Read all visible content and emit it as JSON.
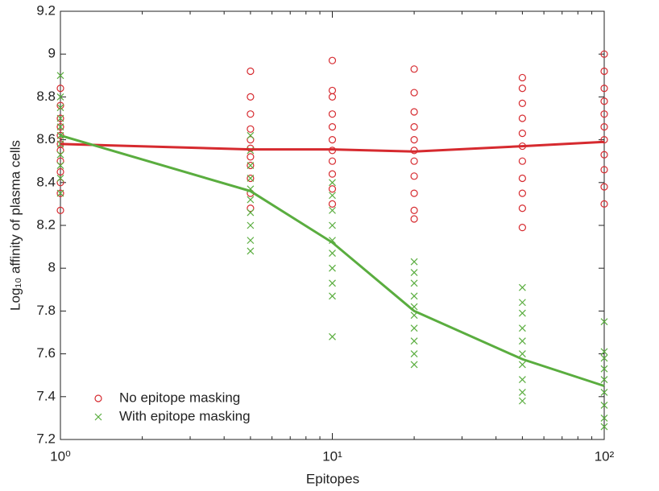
{
  "chart_data": {
    "type": "scatter",
    "xlabel": "Epitopes",
    "ylabel": "Log₁₀ affinity of plasma cells",
    "xscale": "log",
    "xlim": [
      1,
      100
    ],
    "xticks": [
      {
        "value": 1,
        "label": "10⁰"
      },
      {
        "value": 10,
        "label": "10¹"
      },
      {
        "value": 100,
        "label": "10²"
      }
    ],
    "xminorticks": [
      2,
      3,
      4,
      5,
      6,
      7,
      8,
      9,
      20,
      30,
      40,
      50,
      60,
      70,
      80,
      90
    ],
    "ylim": [
      7.2,
      9.2
    ],
    "yticks": [
      7.2,
      7.4,
      7.6,
      7.8,
      8,
      8.2,
      8.4,
      8.6,
      8.8,
      9,
      9.2
    ],
    "legend": "lower left",
    "series": [
      {
        "name": "No epitope masking",
        "color": "#d62a2f",
        "marker": "o",
        "x": [
          1,
          1,
          1,
          1,
          1,
          1,
          1,
          1,
          1,
          1,
          1,
          1,
          5,
          5,
          5,
          5,
          5,
          5,
          5,
          5,
          5,
          5,
          5,
          10,
          10,
          10,
          10,
          10,
          10,
          10,
          10,
          10,
          10,
          10,
          20,
          20,
          20,
          20,
          20,
          20,
          20,
          20,
          20,
          20,
          20,
          50,
          50,
          50,
          50,
          50,
          50,
          50,
          50,
          50,
          50,
          50,
          100,
          100,
          100,
          100,
          100,
          100,
          100,
          100,
          100,
          100,
          100
        ],
        "values": [
          8.27,
          8.35,
          8.4,
          8.45,
          8.5,
          8.55,
          8.58,
          8.62,
          8.66,
          8.7,
          8.76,
          8.84,
          8.28,
          8.35,
          8.42,
          8.48,
          8.52,
          8.56,
          8.6,
          8.65,
          8.72,
          8.8,
          8.92,
          8.3,
          8.37,
          8.44,
          8.5,
          8.55,
          8.6,
          8.66,
          8.72,
          8.8,
          8.83,
          8.97,
          8.23,
          8.27,
          8.35,
          8.43,
          8.5,
          8.55,
          8.6,
          8.66,
          8.73,
          8.82,
          8.93,
          8.19,
          8.28,
          8.35,
          8.42,
          8.5,
          8.57,
          8.63,
          8.7,
          8.77,
          8.84,
          8.89,
          8.3,
          8.38,
          8.46,
          8.53,
          8.6,
          8.66,
          8.72,
          8.78,
          8.84,
          8.92,
          9.0
        ]
      },
      {
        "name": "With epitope masking",
        "color": "#5aad3f",
        "marker": "x",
        "x": [
          1,
          1,
          1,
          1,
          1,
          1,
          1,
          1,
          1,
          1,
          1,
          5,
          5,
          5,
          5,
          5,
          5,
          5,
          5,
          5,
          5,
          10,
          10,
          10,
          10,
          10,
          10,
          10,
          10,
          10,
          10,
          20,
          20,
          20,
          20,
          20,
          20,
          20,
          20,
          20,
          20,
          50,
          50,
          50,
          50,
          50,
          50,
          50,
          50,
          50,
          50,
          100,
          100,
          100,
          100,
          100,
          100,
          100,
          100,
          100
        ],
        "values": [
          8.35,
          8.42,
          8.48,
          8.53,
          8.58,
          8.62,
          8.66,
          8.7,
          8.75,
          8.8,
          8.9,
          8.08,
          8.13,
          8.2,
          8.26,
          8.32,
          8.37,
          8.42,
          8.48,
          8.55,
          8.62,
          7.68,
          7.87,
          7.93,
          8.0,
          8.07,
          8.13,
          8.2,
          8.27,
          8.34,
          8.4,
          7.55,
          7.6,
          7.66,
          7.72,
          7.78,
          7.82,
          7.87,
          7.93,
          7.98,
          8.03,
          7.38,
          7.42,
          7.48,
          7.55,
          7.6,
          7.66,
          7.72,
          7.79,
          7.84,
          7.91,
          7.26,
          7.3,
          7.36,
          7.42,
          7.48,
          7.53,
          7.58,
          7.61,
          7.75
        ]
      }
    ],
    "lines": [
      {
        "color": "#d62a2f",
        "x": [
          1,
          5,
          10,
          20,
          50,
          100
        ],
        "values": [
          8.58,
          8.555,
          8.555,
          8.545,
          8.57,
          8.59
        ]
      },
      {
        "color": "#5aad3f",
        "x": [
          1,
          5,
          10,
          20,
          50,
          100
        ],
        "values": [
          8.62,
          8.36,
          8.12,
          7.8,
          7.575,
          7.45
        ]
      }
    ]
  }
}
